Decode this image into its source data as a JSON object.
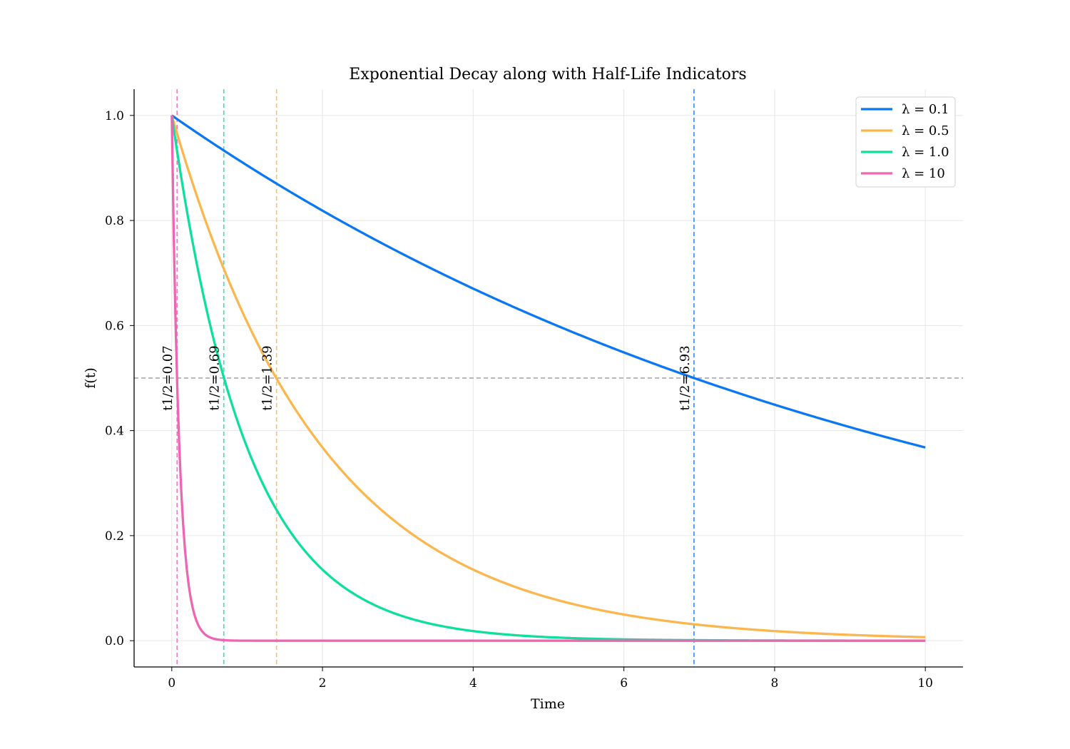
{
  "chart_data": {
    "type": "line",
    "title": "Exponential Decay along with Half-Life Indicators",
    "xlabel": "Time",
    "ylabel": "f(t)",
    "xlim": [
      -0.5,
      10.5
    ],
    "ylim": [
      -0.05,
      1.05
    ],
    "xticks": [
      0,
      2,
      4,
      6,
      8,
      10
    ],
    "xtick_labels": [
      "0",
      "2",
      "4",
      "6",
      "8",
      "10"
    ],
    "yticks": [
      0.0,
      0.2,
      0.4,
      0.6,
      0.8,
      1.0
    ],
    "ytick_labels": [
      "0.0",
      "0.2",
      "0.4",
      "0.6",
      "0.8",
      "1.0"
    ],
    "grid": true,
    "legend_position": "top-right",
    "function": "f(t) = exp(-lambda * t)",
    "t_range": [
      0,
      10
    ],
    "series": [
      {
        "name": "λ = 0.1",
        "lambda": 0.1,
        "color": "#0a77f5",
        "half_life_label": "t1/2=6.93",
        "half_life": 6.93
      },
      {
        "name": "λ = 0.5",
        "lambda": 0.5,
        "color": "#fbb64d",
        "half_life_label": "t1/2=1.39",
        "half_life": 1.39
      },
      {
        "name": "λ = 1.0",
        "lambda": 1.0,
        "color": "#0ddf9d",
        "half_life_label": "t1/2=0.69",
        "half_life": 0.69
      },
      {
        "name": "λ = 10",
        "lambda": 10,
        "color": "#ee65b1",
        "half_life_label": "t1/2=0.07",
        "half_life": 0.07
      }
    ],
    "reference_lines": [
      {
        "orientation": "horizontal",
        "y": 0.5,
        "style": "dashed",
        "color": "#a0a0a0"
      }
    ]
  }
}
